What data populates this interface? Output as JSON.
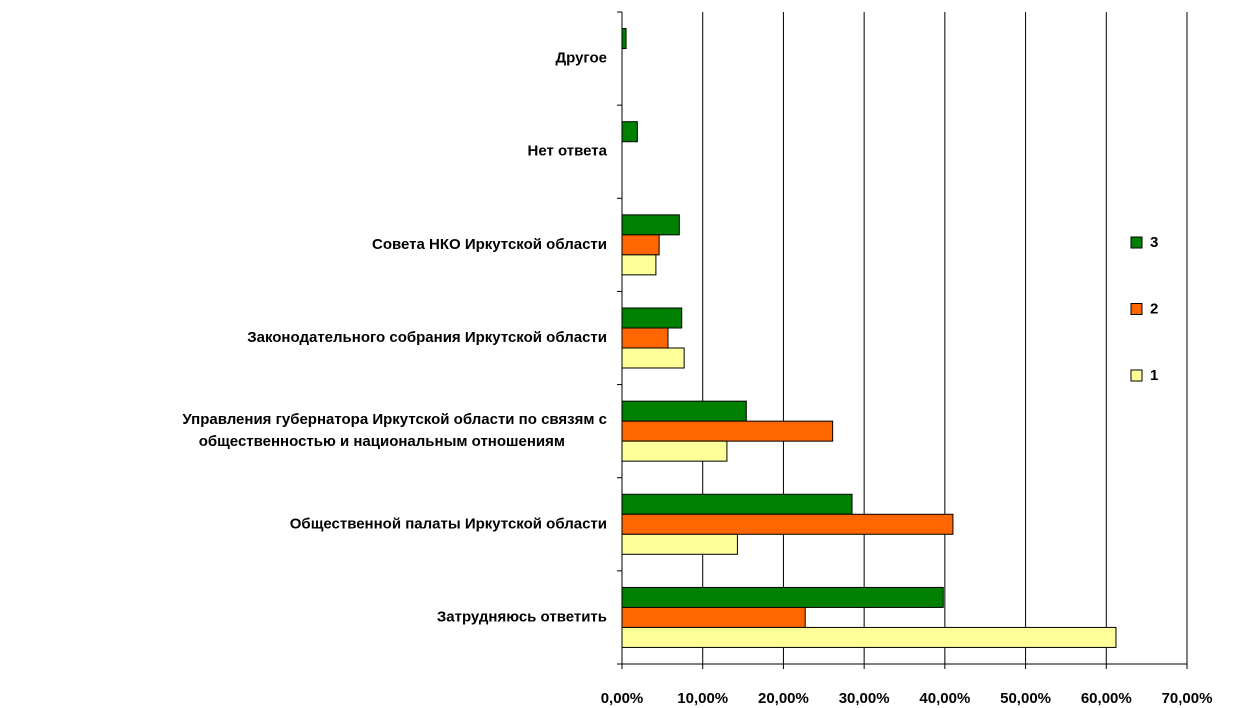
{
  "chart_data": {
    "type": "barh",
    "categories": [
      "Другое",
      "Нет ответа",
      "Совета НКО Иркутской области",
      "Законодательного собрания Иркутской области",
      "Управления губернатора Иркутской области по связям с общественностью и национальным отношениям",
      "Общественной палаты Иркутской области",
      "Затрудняюсь ответить"
    ],
    "series": [
      {
        "name": "3",
        "color": "#008000",
        "values": [
          0.5,
          1.9,
          7.1,
          7.4,
          15.4,
          28.5,
          39.8
        ]
      },
      {
        "name": "2",
        "color": "#ff6600",
        "values": [
          0,
          0,
          4.6,
          5.7,
          26.1,
          41.0,
          22.7
        ]
      },
      {
        "name": "1",
        "color": "#ffff99",
        "values": [
          0,
          0,
          4.2,
          7.7,
          13.0,
          14.3,
          61.2
        ]
      }
    ],
    "xlim": [
      0,
      70
    ],
    "xticks": [
      {
        "value": 0,
        "label": "0,00%"
      },
      {
        "value": 10,
        "label": "10,00%"
      },
      {
        "value": 20,
        "label": "20,00%"
      },
      {
        "value": 30,
        "label": "30,00%"
      },
      {
        "value": 40,
        "label": "40,00%"
      },
      {
        "value": 50,
        "label": "50,00%"
      },
      {
        "value": 60,
        "label": "60,00%"
      },
      {
        "value": 70,
        "label": "70,00%"
      }
    ],
    "grid": true,
    "legend": "right"
  }
}
